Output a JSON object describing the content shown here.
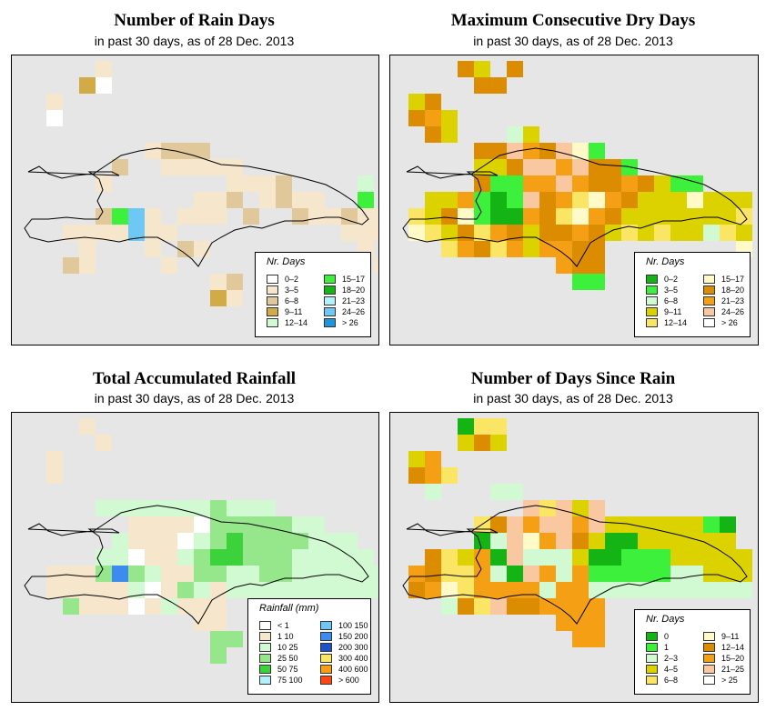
{
  "panels": [
    {
      "id": "rain-days",
      "title": "Number of Rain Days",
      "subtitle": "in past 30 days, as of  28 Dec. 2013",
      "legend_title": "Nr. Days",
      "classes": [
        {
          "label": "0–2",
          "color": "#ffffff"
        },
        {
          "label": "3–5",
          "color": "#f5e6cc"
        },
        {
          "label": "6–8",
          "color": "#e1c89b"
        },
        {
          "label": "9–11",
          "color": "#d2aa46"
        },
        {
          "label": "12–14",
          "color": "#d2fad2"
        },
        {
          "label": "15–17",
          "color": "#3cf03c"
        },
        {
          "label": "18–20",
          "color": "#14b414"
        },
        {
          "label": "21–23",
          "color": "#b4f0fa"
        },
        {
          "label": "24–26",
          "color": "#6ec8f5"
        },
        {
          "label": "> 26",
          "color": "#1e96dc"
        }
      ]
    },
    {
      "id": "max-dry-days",
      "title": "Maximum Consecutive Dry Days",
      "subtitle": "in past 30 days, as of  28 Dec. 2013",
      "legend_title": "Nr. Days",
      "classes": [
        {
          "label": "0–2",
          "color": "#14b414"
        },
        {
          "label": "3–5",
          "color": "#3cf03c"
        },
        {
          "label": "6–8",
          "color": "#d2fad2"
        },
        {
          "label": "9–11",
          "color": "#dcd200"
        },
        {
          "label": "12–14",
          "color": "#fae664"
        },
        {
          "label": "15–17",
          "color": "#fffac8"
        },
        {
          "label": "18–20",
          "color": "#dc8c00"
        },
        {
          "label": "21–23",
          "color": "#f5a014"
        },
        {
          "label": "24–26",
          "color": "#fac8a0"
        },
        {
          "label": "> 26",
          "color": "#ffffff"
        }
      ]
    },
    {
      "id": "total-rainfall",
      "title": "Total Accumulated Rainfall",
      "subtitle": "in past 30 days, as of  28 Dec. 2013",
      "legend_title": "Rainfall (mm)",
      "classes": [
        {
          "label": "< 1",
          "color": "#ffffff"
        },
        {
          "label": "1    10",
          "color": "#f5e6cc"
        },
        {
          "label": "10    25",
          "color": "#d2fad2"
        },
        {
          "label": "25    50",
          "color": "#96e68c"
        },
        {
          "label": "50    75",
          "color": "#3cd23c"
        },
        {
          "label": "75  100",
          "color": "#b4f0fa"
        },
        {
          "label": "100  150",
          "color": "#6ec8f5"
        },
        {
          "label": "150  200",
          "color": "#3c8cf0"
        },
        {
          "label": "200  300",
          "color": "#1e50c8"
        },
        {
          "label": "300  400",
          "color": "#fae664"
        },
        {
          "label": "400  600",
          "color": "#f5a014"
        },
        {
          "label": "> 600",
          "color": "#ff4614"
        }
      ]
    },
    {
      "id": "days-since-rain",
      "title": "Number of Days Since Rain",
      "subtitle": "in past 30 days, as of  28 Dec. 2013",
      "legend_title": "Nr. Days",
      "classes": [
        {
          "label": "0",
          "color": "#14b414"
        },
        {
          "label": "1",
          "color": "#3cf03c"
        },
        {
          "label": "2–3",
          "color": "#d2fad2"
        },
        {
          "label": "4–5",
          "color": "#dcd200"
        },
        {
          "label": "6–8",
          "color": "#fae664"
        },
        {
          "label": "9–11",
          "color": "#fffac8"
        },
        {
          "label": "12–14",
          "color": "#dc8c00"
        },
        {
          "label": "15–20",
          "color": "#f5a014"
        },
        {
          "label": "21–25",
          "color": "#fac8a0"
        },
        {
          "label": "> 25",
          "color": "#ffffff"
        }
      ]
    }
  ]
}
